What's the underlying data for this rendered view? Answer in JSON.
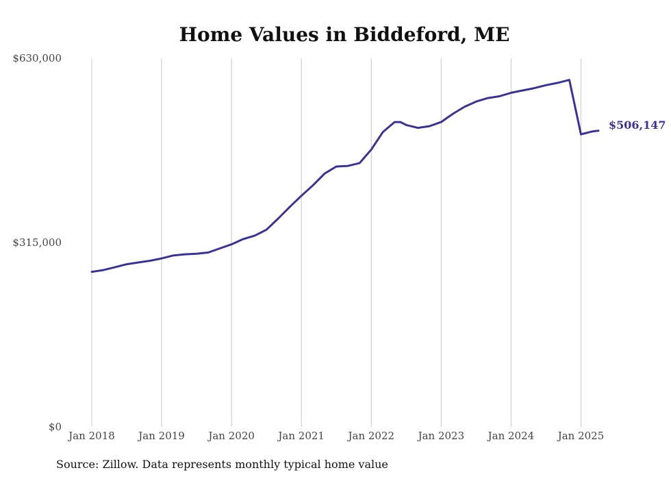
{
  "chart_data": {
    "type": "line",
    "title": "Home Values in Biddeford, ME",
    "xlabel": "",
    "ylabel": "",
    "ylim": [
      0,
      630000
    ],
    "xlim": [
      "2018-01",
      "2025-04"
    ],
    "yticks": [
      0,
      315000,
      630000
    ],
    "ytick_labels": [
      "$0",
      "$315,000",
      "$630,000"
    ],
    "xticks": [
      "2018-01",
      "2019-01",
      "2020-01",
      "2021-01",
      "2022-01",
      "2023-01",
      "2024-01",
      "2025-01"
    ],
    "xtick_labels": [
      "Jan 2018",
      "Jan 2019",
      "Jan 2020",
      "Jan 2021",
      "Jan 2022",
      "Jan 2023",
      "Jan 2024",
      "Jan 2025"
    ],
    "grid": "vertical",
    "legend": "none",
    "end_label": "$506,147",
    "color": "#3b3489",
    "series": [
      {
        "x": [
          "2018-01",
          "2018-03",
          "2018-05",
          "2018-07",
          "2018-09",
          "2018-11",
          "2019-01",
          "2019-03",
          "2019-05",
          "2019-07",
          "2019-09",
          "2019-11",
          "2020-01",
          "2020-03",
          "2020-05",
          "2020-07",
          "2020-09",
          "2020-11",
          "2021-01",
          "2021-03",
          "2021-05",
          "2021-07",
          "2021-09",
          "2021-11",
          "2022-01",
          "2022-03",
          "2022-05",
          "2022-06",
          "2022-07",
          "2022-09",
          "2022-11",
          "2023-01",
          "2023-03",
          "2023-05",
          "2023-07",
          "2023-09",
          "2023-11",
          "2024-01",
          "2024-03",
          "2024-05",
          "2024-07",
          "2024-09",
          "2024-11",
          "2025-01",
          "2025-03",
          "2025-04"
        ],
        "values": [
          265000,
          268000,
          273000,
          278000,
          281000,
          284000,
          288000,
          293000,
          295000,
          296000,
          298000,
          305000,
          312000,
          321000,
          327000,
          337000,
          356000,
          376000,
          395000,
          413000,
          433000,
          445000,
          446000,
          451000,
          474000,
          504000,
          521000,
          521000,
          516000,
          511000,
          514000,
          521000,
          535000,
          547000,
          556000,
          562000,
          565000,
          571000,
          575000,
          579000,
          584000,
          588000,
          593000,
          500000,
          505000,
          506147
        ]
      }
    ],
    "source": "Source: Zillow. Data represents monthly typical home value"
  }
}
